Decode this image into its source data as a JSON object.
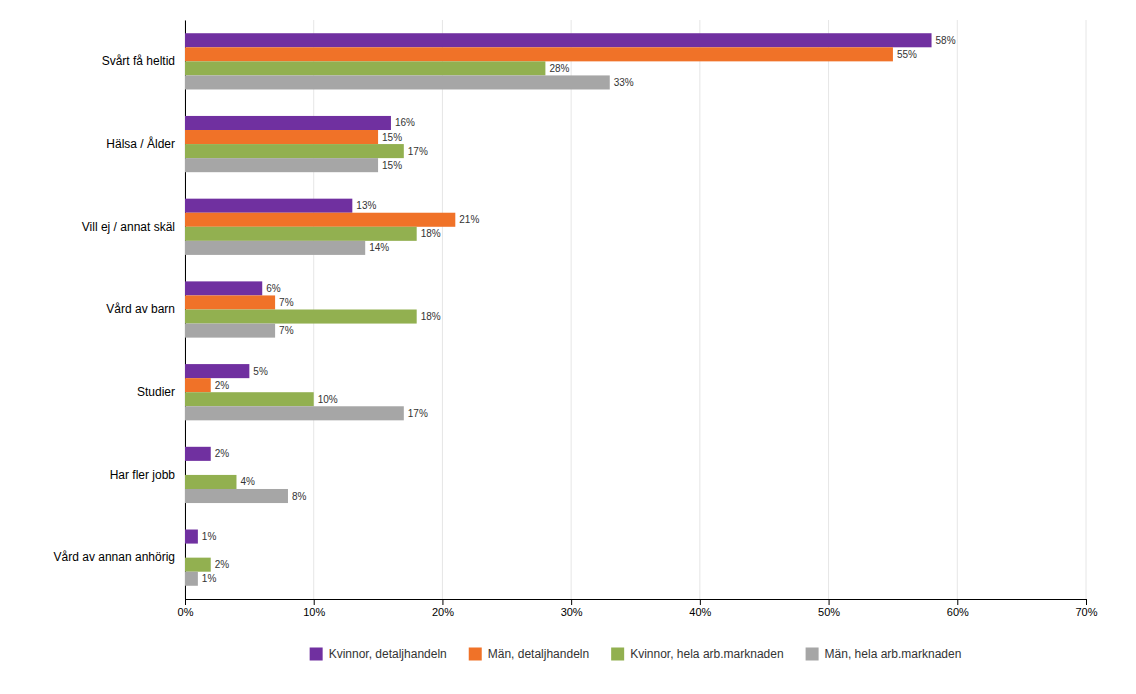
{
  "chart_data": {
    "type": "bar",
    "orientation": "horizontal",
    "categories": [
      "Svårt få heltid",
      "Hälsa / Ålder",
      "Vill ej / annat skäl",
      "Vård av barn",
      "Studier",
      "Har fler jobb",
      "Vård av annan anhörig"
    ],
    "series": [
      {
        "name": "Kvinnor, detaljhandeln",
        "color": "#7030a0",
        "values": [
          58,
          16,
          13,
          6,
          5,
          2,
          1
        ],
        "value_labels": [
          "58%",
          "16%",
          "13%",
          "6%",
          "5%",
          "2%",
          "1%"
        ]
      },
      {
        "name": "Män, detaljhandeln",
        "color": "#f07228",
        "values": [
          55,
          15,
          21,
          7,
          2,
          0,
          0
        ],
        "value_labels": [
          "55%",
          "15%",
          "21%",
          "7%",
          "2%",
          null,
          null
        ]
      },
      {
        "name": "Kvinnor, hela arb.marknaden",
        "color": "#92b050",
        "values": [
          28,
          17,
          18,
          18,
          10,
          4,
          2
        ],
        "value_labels": [
          "28%",
          "17%",
          "18%",
          "18%",
          "10%",
          "4%",
          "2%"
        ]
      },
      {
        "name": "Män, hela arb.marknaden",
        "color": "#a6a6a6",
        "values": [
          33,
          15,
          14,
          7,
          17,
          8,
          1
        ],
        "value_labels": [
          "33%",
          "15%",
          "14%",
          "7%",
          "17%",
          "8%",
          "1%"
        ]
      }
    ],
    "xlim": [
      0,
      70
    ],
    "xticks": [
      {
        "value": 0,
        "label": "0%"
      },
      {
        "value": 10,
        "label": "10%"
      },
      {
        "value": 20,
        "label": "20%"
      },
      {
        "value": 30,
        "label": "30%"
      },
      {
        "value": 40,
        "label": "40%"
      },
      {
        "value": 50,
        "label": "50%"
      },
      {
        "value": 60,
        "label": "60%"
      },
      {
        "value": 70,
        "label": "70%"
      }
    ],
    "grid": true,
    "data_labels": true,
    "legend": "bottom"
  }
}
